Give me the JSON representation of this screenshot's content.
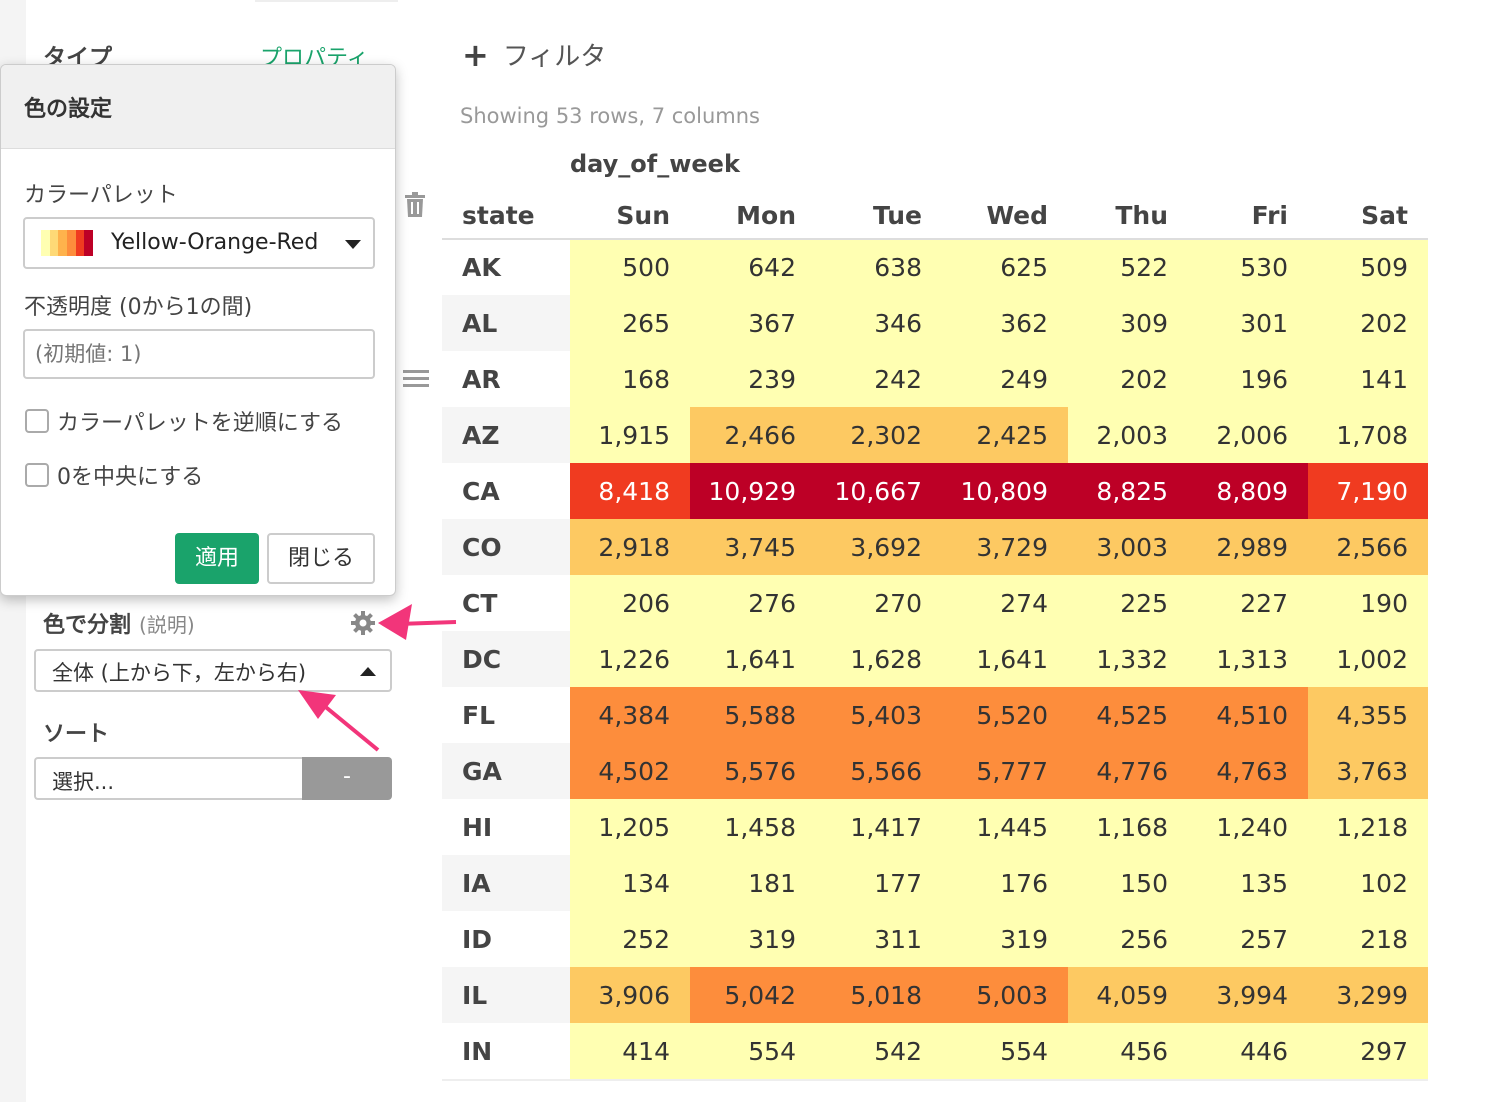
{
  "sidebar": {
    "type_label": "タイプ",
    "property_link": "プロパティ",
    "split_label": "色で分割",
    "split_help": "(説明)",
    "split_select_value": "全体 (上から下，左から右)",
    "sort_label": "ソート",
    "sort_select_value": "選択...",
    "sort_button_label": "-"
  },
  "popover": {
    "title": "色の設定",
    "palette_label": "カラーパレット",
    "palette_value": "Yellow-Orange-Red",
    "palette_swatch_colors": [
      "#ffffb2",
      "#fed976",
      "#feb24c",
      "#fd8d3c",
      "#f03b20",
      "#bd0026"
    ],
    "opacity_label": "不透明度 (0から1の間)",
    "opacity_placeholder": "(初期値: 1)",
    "reverse_label": "カラーパレットを逆順にする",
    "center_label": "0を中央にする",
    "apply_label": "適用",
    "close_label": "閉じる"
  },
  "main": {
    "filter_label": "フィルタ",
    "showing_text": "Showing 53 rows, 7 columns",
    "column_group": "day_of_week",
    "row_header": "state",
    "columns": [
      "Sun",
      "Mon",
      "Tue",
      "Wed",
      "Thu",
      "Fri",
      "Sat"
    ]
  },
  "colors": {
    "accent": "#1aa36b",
    "arrow": "#f2357a",
    "heat_1": "#ffffb2",
    "heat_2": "#fdc962",
    "heat_3": "#fd8d3c",
    "heat_4": "#f03b20",
    "heat_5": "#bd0026"
  },
  "rows": [
    {
      "state": "AK",
      "values": [
        "500",
        "642",
        "638",
        "625",
        "522",
        "530",
        "509"
      ],
      "heat": [
        1,
        1,
        1,
        1,
        1,
        1,
        1
      ]
    },
    {
      "state": "AL",
      "values": [
        "265",
        "367",
        "346",
        "362",
        "309",
        "301",
        "202"
      ],
      "heat": [
        1,
        1,
        1,
        1,
        1,
        1,
        1
      ]
    },
    {
      "state": "AR",
      "values": [
        "168",
        "239",
        "242",
        "249",
        "202",
        "196",
        "141"
      ],
      "heat": [
        1,
        1,
        1,
        1,
        1,
        1,
        1
      ]
    },
    {
      "state": "AZ",
      "values": [
        "1,915",
        "2,466",
        "2,302",
        "2,425",
        "2,003",
        "2,006",
        "1,708"
      ],
      "heat": [
        1,
        2,
        2,
        2,
        1,
        1,
        1
      ]
    },
    {
      "state": "CA",
      "values": [
        "8,418",
        "10,929",
        "10,667",
        "10,809",
        "8,825",
        "8,809",
        "7,190"
      ],
      "heat": [
        4,
        5,
        5,
        5,
        5,
        5,
        4
      ]
    },
    {
      "state": "CO",
      "values": [
        "2,918",
        "3,745",
        "3,692",
        "3,729",
        "3,003",
        "2,989",
        "2,566"
      ],
      "heat": [
        2,
        2,
        2,
        2,
        2,
        2,
        2
      ]
    },
    {
      "state": "CT",
      "values": [
        "206",
        "276",
        "270",
        "274",
        "225",
        "227",
        "190"
      ],
      "heat": [
        1,
        1,
        1,
        1,
        1,
        1,
        1
      ]
    },
    {
      "state": "DC",
      "values": [
        "1,226",
        "1,641",
        "1,628",
        "1,641",
        "1,332",
        "1,313",
        "1,002"
      ],
      "heat": [
        1,
        1,
        1,
        1,
        1,
        1,
        1
      ]
    },
    {
      "state": "FL",
      "values": [
        "4,384",
        "5,588",
        "5,403",
        "5,520",
        "4,525",
        "4,510",
        "4,355"
      ],
      "heat": [
        3,
        3,
        3,
        3,
        3,
        3,
        2
      ]
    },
    {
      "state": "GA",
      "values": [
        "4,502",
        "5,576",
        "5,566",
        "5,777",
        "4,776",
        "4,763",
        "3,763"
      ],
      "heat": [
        3,
        3,
        3,
        3,
        3,
        3,
        2
      ]
    },
    {
      "state": "HI",
      "values": [
        "1,205",
        "1,458",
        "1,417",
        "1,445",
        "1,168",
        "1,240",
        "1,218"
      ],
      "heat": [
        1,
        1,
        1,
        1,
        1,
        1,
        1
      ]
    },
    {
      "state": "IA",
      "values": [
        "134",
        "181",
        "177",
        "176",
        "150",
        "135",
        "102"
      ],
      "heat": [
        1,
        1,
        1,
        1,
        1,
        1,
        1
      ]
    },
    {
      "state": "ID",
      "values": [
        "252",
        "319",
        "311",
        "319",
        "256",
        "257",
        "218"
      ],
      "heat": [
        1,
        1,
        1,
        1,
        1,
        1,
        1
      ]
    },
    {
      "state": "IL",
      "values": [
        "3,906",
        "5,042",
        "5,018",
        "5,003",
        "4,059",
        "3,994",
        "3,299"
      ],
      "heat": [
        2,
        3,
        3,
        3,
        2,
        2,
        2
      ]
    },
    {
      "state": "IN",
      "values": [
        "414",
        "554",
        "542",
        "554",
        "456",
        "446",
        "297"
      ],
      "heat": [
        1,
        1,
        1,
        1,
        1,
        1,
        1
      ]
    }
  ]
}
